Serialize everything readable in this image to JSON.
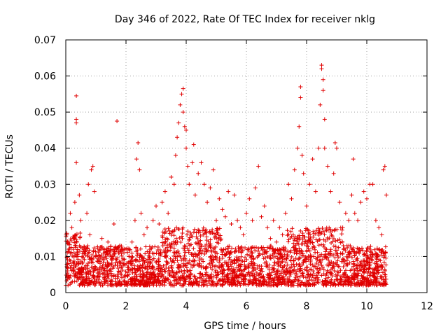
{
  "chart_data": {
    "type": "scatter",
    "title": "Day 346 of 2022, Rate Of TEC Index for receiver nklg",
    "xlabel": "GPS time / hours",
    "ylabel": "ROTI / TECUs",
    "xlim": [
      0,
      12
    ],
    "ylim": [
      0,
      0.07
    ],
    "xticks": [
      0,
      2,
      4,
      6,
      8,
      10,
      12
    ],
    "yticks": [
      0,
      0.01,
      0.02,
      0.03,
      0.04,
      0.05,
      0.06,
      0.07
    ],
    "xtick_labels": [
      "0",
      "2",
      "4",
      "6",
      "8",
      "10",
      "12"
    ],
    "ytick_labels": [
      "0",
      "0.01",
      "0.02",
      "0.03",
      "0.04",
      "0.05",
      "0.06",
      "0.07"
    ],
    "grid": true,
    "marker": "+",
    "series_color": "#e00000",
    "series": [
      {
        "name": "ROTI",
        "points": [
          [
            0.05,
            0.006
          ],
          [
            0.1,
            0.012
          ],
          [
            0.15,
            0.022
          ],
          [
            0.2,
            0.018
          ],
          [
            0.25,
            0.015
          ],
          [
            0.3,
            0.025
          ],
          [
            0.35,
            0.036
          ],
          [
            0.35,
            0.047
          ],
          [
            0.35,
            0.048
          ],
          [
            0.35,
            0.0545
          ],
          [
            0.4,
            0.01
          ],
          [
            0.45,
            0.027
          ],
          [
            0.5,
            0.02
          ],
          [
            0.6,
            0.012
          ],
          [
            0.7,
            0.022
          ],
          [
            0.75,
            0.03
          ],
          [
            0.8,
            0.016
          ],
          [
            0.85,
            0.034
          ],
          [
            0.9,
            0.035
          ],
          [
            0.95,
            0.028
          ],
          [
            1.0,
            0.01
          ],
          [
            1.1,
            0.009
          ],
          [
            1.2,
            0.015
          ],
          [
            1.3,
            0.011
          ],
          [
            1.4,
            0.014
          ],
          [
            1.5,
            0.012
          ],
          [
            1.6,
            0.019
          ],
          [
            1.7,
            0.0475
          ],
          [
            1.75,
            0.011
          ],
          [
            1.8,
            0.013
          ],
          [
            1.9,
            0.009
          ],
          [
            2.0,
            0.012
          ],
          [
            2.1,
            0.01
          ],
          [
            2.2,
            0.014
          ],
          [
            2.3,
            0.02
          ],
          [
            2.35,
            0.037
          ],
          [
            2.4,
            0.0415
          ],
          [
            2.45,
            0.034
          ],
          [
            2.5,
            0.022
          ],
          [
            2.6,
            0.016
          ],
          [
            2.7,
            0.018
          ],
          [
            2.8,
            0.012
          ],
          [
            2.9,
            0.02
          ],
          [
            3.0,
            0.024
          ],
          [
            3.1,
            0.019
          ],
          [
            3.2,
            0.025
          ],
          [
            3.3,
            0.028
          ],
          [
            3.4,
            0.022
          ],
          [
            3.5,
            0.032
          ],
          [
            3.6,
            0.03
          ],
          [
            3.65,
            0.038
          ],
          [
            3.7,
            0.043
          ],
          [
            3.75,
            0.047
          ],
          [
            3.8,
            0.052
          ],
          [
            3.85,
            0.055
          ],
          [
            3.9,
            0.0565
          ],
          [
            3.9,
            0.05
          ],
          [
            3.95,
            0.046
          ],
          [
            4.0,
            0.045
          ],
          [
            4.0,
            0.04
          ],
          [
            4.05,
            0.035
          ],
          [
            4.1,
            0.03
          ],
          [
            4.2,
            0.036
          ],
          [
            4.25,
            0.041
          ],
          [
            4.3,
            0.027
          ],
          [
            4.4,
            0.033
          ],
          [
            4.5,
            0.036
          ],
          [
            4.6,
            0.03
          ],
          [
            4.7,
            0.025
          ],
          [
            4.8,
            0.029
          ],
          [
            4.9,
            0.034
          ],
          [
            5.0,
            0.02
          ],
          [
            5.1,
            0.026
          ],
          [
            5.2,
            0.023
          ],
          [
            5.3,
            0.021
          ],
          [
            5.4,
            0.028
          ],
          [
            5.5,
            0.019
          ],
          [
            5.6,
            0.027
          ],
          [
            5.7,
            0.02
          ],
          [
            5.8,
            0.018
          ],
          [
            5.9,
            0.016
          ],
          [
            6.0,
            0.022
          ],
          [
            6.1,
            0.026
          ],
          [
            6.2,
            0.02
          ],
          [
            6.3,
            0.029
          ],
          [
            6.4,
            0.035
          ],
          [
            6.5,
            0.021
          ],
          [
            6.6,
            0.024
          ],
          [
            6.7,
            0.018
          ],
          [
            6.8,
            0.015
          ],
          [
            6.9,
            0.02
          ],
          [
            7.0,
            0.014
          ],
          [
            7.1,
            0.018
          ],
          [
            7.2,
            0.016
          ],
          [
            7.3,
            0.022
          ],
          [
            7.4,
            0.03
          ],
          [
            7.5,
            0.026
          ],
          [
            7.6,
            0.034
          ],
          [
            7.7,
            0.04
          ],
          [
            7.75,
            0.046
          ],
          [
            7.8,
            0.054
          ],
          [
            7.8,
            0.057
          ],
          [
            7.85,
            0.038
          ],
          [
            7.9,
            0.033
          ],
          [
            8.0,
            0.024
          ],
          [
            8.1,
            0.03
          ],
          [
            8.2,
            0.037
          ],
          [
            8.3,
            0.028
          ],
          [
            8.4,
            0.04
          ],
          [
            8.45,
            0.052
          ],
          [
            8.5,
            0.063
          ],
          [
            8.5,
            0.062
          ],
          [
            8.55,
            0.059
          ],
          [
            8.55,
            0.056
          ],
          [
            8.6,
            0.048
          ],
          [
            8.6,
            0.04
          ],
          [
            8.7,
            0.035
          ],
          [
            8.8,
            0.028
          ],
          [
            8.9,
            0.033
          ],
          [
            8.95,
            0.0415
          ],
          [
            9.0,
            0.04
          ],
          [
            9.1,
            0.025
          ],
          [
            9.2,
            0.018
          ],
          [
            9.3,
            0.022
          ],
          [
            9.4,
            0.02
          ],
          [
            9.5,
            0.027
          ],
          [
            9.55,
            0.037
          ],
          [
            9.6,
            0.022
          ],
          [
            9.7,
            0.02
          ],
          [
            9.8,
            0.025
          ],
          [
            9.9,
            0.028
          ],
          [
            10.0,
            0.026
          ],
          [
            10.1,
            0.03
          ],
          [
            10.2,
            0.03
          ],
          [
            10.3,
            0.02
          ],
          [
            10.4,
            0.018
          ],
          [
            10.5,
            0.016
          ],
          [
            10.55,
            0.034
          ],
          [
            10.6,
            0.035
          ],
          [
            10.65,
            0.027
          ]
        ]
      }
    ],
    "dense_band": {
      "x_range": [
        0,
        10.65
      ],
      "description_values": "bulk of ROTI values lie between 0.002 and 0.018 TECU/s across 0–10.65 h",
      "y_floor": 0.002,
      "y_ceiling": 0.018
    }
  }
}
